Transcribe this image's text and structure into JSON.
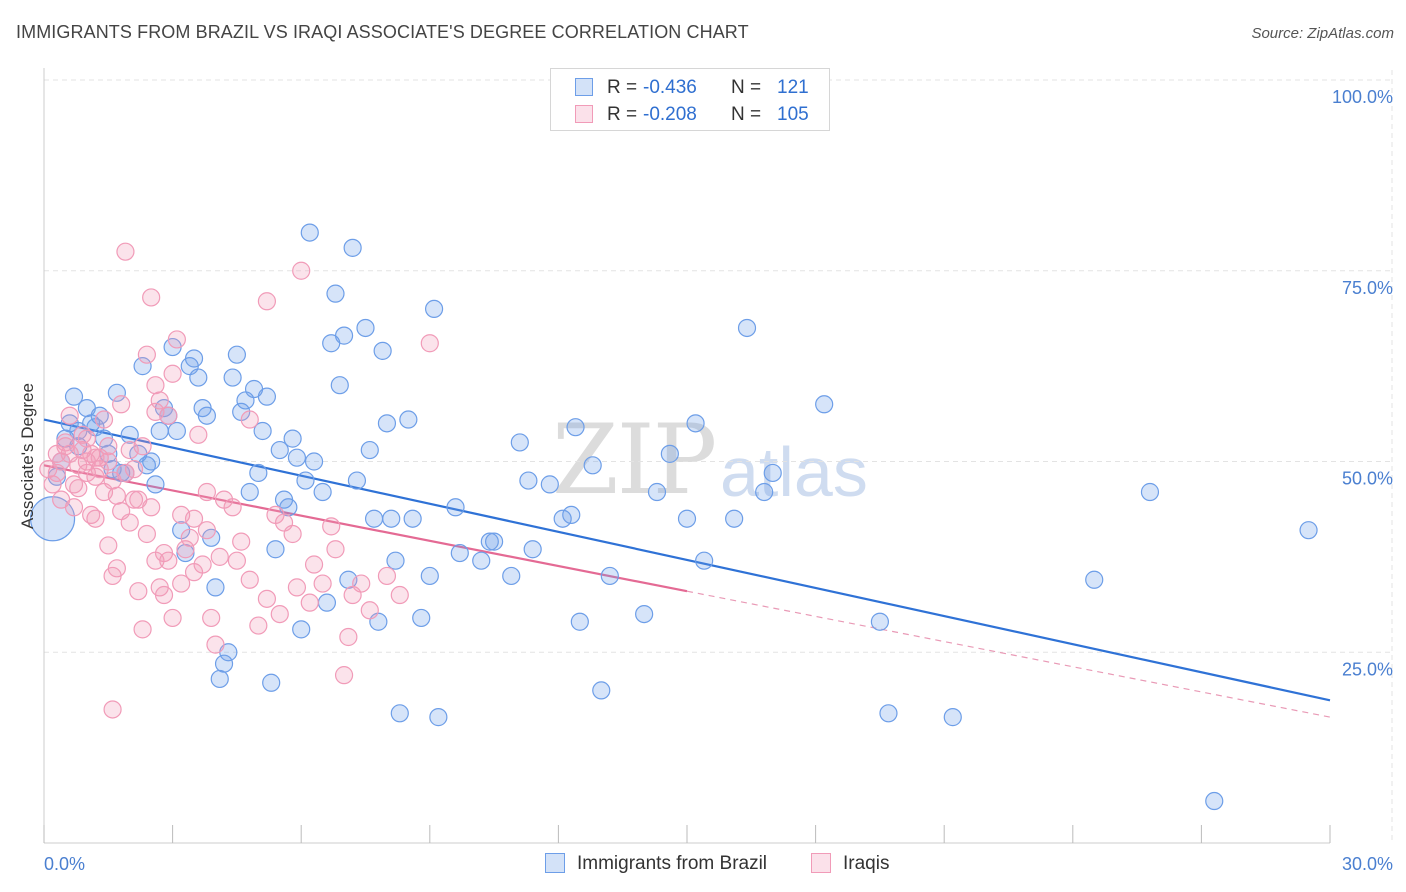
{
  "header": {
    "title": "IMMIGRANTS FROM BRAZIL VS IRAQI ASSOCIATE'S DEGREE CORRELATION CHART",
    "source": "Source: ZipAtlas.com"
  },
  "watermark": {
    "zip": "ZIP",
    "atlas": "atlas"
  },
  "legend": {
    "rows": [
      {
        "r_label": "R =",
        "r_value": "-0.436",
        "n_label": "N =",
        "n_value": "121",
        "color": "#6d9ee8"
      },
      {
        "r_label": "R =",
        "r_value": "-0.208",
        "n_label": "N =",
        "n_value": "105",
        "color": "#f19bb8"
      }
    ]
  },
  "bottom_legend": {
    "items": [
      {
        "label": "Immigrants from Brazil",
        "color": "#6d9ee8"
      },
      {
        "label": "Iraqis",
        "color": "#f19bb8"
      }
    ]
  },
  "axes": {
    "ylabel": "Associate's Degree",
    "y_ticks": [
      "100.0%",
      "75.0%",
      "50.0%",
      "25.0%"
    ],
    "x_ticks": [
      "0.0%",
      "30.0%"
    ]
  },
  "chart_data": {
    "type": "scatter",
    "title": "IMMIGRANTS FROM BRAZIL VS IRAQI ASSOCIATE'S DEGREE CORRELATION CHART",
    "xlabel": "",
    "ylabel": "Associate's Degree",
    "xlim": [
      0,
      30
    ],
    "ylim": [
      0,
      100
    ],
    "x_unit": "%",
    "y_unit": "%",
    "grid": true,
    "legend_placement": "top-center",
    "series": [
      {
        "name": "Immigrants from Brazil",
        "color": "#6d9ee8",
        "trend": {
          "x": [
            0,
            30
          ],
          "y": [
            55.5,
            18.7
          ],
          "style": "solid"
        },
        "points": [
          [
            0.2,
            42.5
          ],
          [
            0.3,
            48
          ],
          [
            0.4,
            50
          ],
          [
            0.5,
            53
          ],
          [
            0.6,
            55
          ],
          [
            0.7,
            58.5
          ],
          [
            0.8,
            54
          ],
          [
            0.8,
            52
          ],
          [
            1.0,
            57
          ],
          [
            1.1,
            55
          ],
          [
            1.2,
            54.5
          ],
          [
            1.3,
            56
          ],
          [
            1.4,
            53
          ],
          [
            1.5,
            51
          ],
          [
            1.6,
            49
          ],
          [
            1.7,
            59
          ],
          [
            1.8,
            48.5
          ],
          [
            1.9,
            48.5
          ],
          [
            2.0,
            53.5
          ],
          [
            2.2,
            51
          ],
          [
            2.3,
            62.5
          ],
          [
            2.4,
            49.5
          ],
          [
            2.5,
            50
          ],
          [
            2.6,
            47
          ],
          [
            2.7,
            54
          ],
          [
            2.8,
            57
          ],
          [
            2.9,
            56
          ],
          [
            3.0,
            65
          ],
          [
            3.1,
            54
          ],
          [
            3.2,
            41
          ],
          [
            3.3,
            38
          ],
          [
            3.4,
            62.5
          ],
          [
            3.5,
            63.5
          ],
          [
            3.6,
            61
          ],
          [
            3.7,
            57
          ],
          [
            3.8,
            56
          ],
          [
            3.9,
            40
          ],
          [
            4.0,
            33.5
          ],
          [
            4.1,
            21.5
          ],
          [
            4.2,
            23.5
          ],
          [
            4.3,
            25
          ],
          [
            4.4,
            61
          ],
          [
            4.5,
            64
          ],
          [
            4.6,
            56.5
          ],
          [
            4.7,
            58
          ],
          [
            4.8,
            46
          ],
          [
            4.9,
            59.5
          ],
          [
            5.0,
            48.5
          ],
          [
            5.1,
            54
          ],
          [
            5.2,
            58.5
          ],
          [
            5.3,
            21
          ],
          [
            5.4,
            38.5
          ],
          [
            5.5,
            51.5
          ],
          [
            5.6,
            45
          ],
          [
            5.7,
            44
          ],
          [
            5.8,
            53
          ],
          [
            5.9,
            50.5
          ],
          [
            6.0,
            28
          ],
          [
            6.1,
            47.5
          ],
          [
            6.2,
            80
          ],
          [
            6.3,
            50
          ],
          [
            6.5,
            46
          ],
          [
            6.6,
            31.5
          ],
          [
            6.7,
            65.5
          ],
          [
            6.8,
            72
          ],
          [
            6.9,
            60
          ],
          [
            7.0,
            66.5
          ],
          [
            7.1,
            34.5
          ],
          [
            7.2,
            78
          ],
          [
            7.3,
            47.5
          ],
          [
            7.5,
            67.5
          ],
          [
            7.6,
            51.5
          ],
          [
            7.7,
            42.5
          ],
          [
            7.8,
            29
          ],
          [
            7.9,
            64.5
          ],
          [
            8.0,
            55
          ],
          [
            8.1,
            42.5
          ],
          [
            8.2,
            37
          ],
          [
            8.3,
            17
          ],
          [
            8.5,
            55.5
          ],
          [
            8.6,
            42.5
          ],
          [
            8.8,
            29.5
          ],
          [
            9.0,
            35
          ],
          [
            9.1,
            70
          ],
          [
            9.2,
            16.5
          ],
          [
            9.6,
            44
          ],
          [
            9.7,
            38
          ],
          [
            10.2,
            37
          ],
          [
            10.4,
            39.5
          ],
          [
            10.5,
            39.5
          ],
          [
            10.9,
            35
          ],
          [
            11.1,
            52.5
          ],
          [
            11.3,
            47.5
          ],
          [
            11.4,
            38.5
          ],
          [
            11.8,
            47
          ],
          [
            12.1,
            42.5
          ],
          [
            12.3,
            43
          ],
          [
            12.4,
            54.5
          ],
          [
            12.5,
            29
          ],
          [
            12.8,
            49.5
          ],
          [
            13.0,
            20
          ],
          [
            13.2,
            35
          ],
          [
            14.0,
            30
          ],
          [
            14.3,
            46
          ],
          [
            14.6,
            51
          ],
          [
            15.0,
            42.5
          ],
          [
            15.2,
            55
          ],
          [
            15.4,
            37
          ],
          [
            16.1,
            42.5
          ],
          [
            16.4,
            67.5
          ],
          [
            16.8,
            46
          ],
          [
            17.0,
            48.5
          ],
          [
            18.2,
            57.5
          ],
          [
            19.5,
            29
          ],
          [
            19.7,
            17
          ],
          [
            21.2,
            16.5
          ],
          [
            24.5,
            34.5
          ],
          [
            25.8,
            46
          ],
          [
            27.3,
            5.5
          ],
          [
            29.5,
            41
          ]
        ]
      },
      {
        "name": "Iraqis",
        "color": "#f19bb8",
        "trend": {
          "x": [
            0,
            15
          ],
          "y": [
            49.5,
            33
          ],
          "style": "solid",
          "extended_to": [
            30,
            16.5
          ]
        },
        "points": [
          [
            0.1,
            49
          ],
          [
            0.2,
            47
          ],
          [
            0.3,
            51
          ],
          [
            0.4,
            50
          ],
          [
            0.5,
            52
          ],
          [
            0.6,
            56
          ],
          [
            0.7,
            44
          ],
          [
            0.8,
            46.5
          ],
          [
            0.9,
            51.5
          ],
          [
            1.0,
            50
          ],
          [
            1.1,
            43
          ],
          [
            1.2,
            42.5
          ],
          [
            1.3,
            50.5
          ],
          [
            1.4,
            55.5
          ],
          [
            1.5,
            39
          ],
          [
            1.6,
            35
          ],
          [
            1.7,
            36
          ],
          [
            1.8,
            57.5
          ],
          [
            1.9,
            77.5
          ],
          [
            2.0,
            51.5
          ],
          [
            2.1,
            45
          ],
          [
            2.2,
            33
          ],
          [
            2.3,
            28
          ],
          [
            2.4,
            64
          ],
          [
            2.5,
            71.5
          ],
          [
            2.6,
            60
          ],
          [
            2.7,
            33.5
          ],
          [
            2.8,
            38
          ],
          [
            2.9,
            37
          ],
          [
            3.0,
            61.5
          ],
          [
            3.1,
            66
          ],
          [
            3.2,
            34
          ],
          [
            3.3,
            38.5
          ],
          [
            3.4,
            40
          ],
          [
            3.5,
            35.5
          ],
          [
            3.6,
            53.5
          ],
          [
            3.7,
            36.5
          ],
          [
            3.8,
            46
          ],
          [
            3.9,
            29.5
          ],
          [
            4.0,
            26
          ],
          [
            4.2,
            45
          ],
          [
            4.4,
            44
          ],
          [
            4.6,
            39.5
          ],
          [
            4.8,
            55.5
          ],
          [
            5.0,
            28.5
          ],
          [
            5.2,
            71
          ],
          [
            5.4,
            43
          ],
          [
            5.6,
            42
          ],
          [
            5.8,
            40.5
          ],
          [
            6.0,
            75
          ],
          [
            6.2,
            31.5
          ],
          [
            6.5,
            34
          ],
          [
            6.8,
            38.5
          ],
          [
            7.0,
            22
          ],
          [
            7.2,
            32.5
          ],
          [
            7.4,
            34
          ],
          [
            7.6,
            30.5
          ],
          [
            8.0,
            35
          ],
          [
            8.3,
            32.5
          ],
          [
            9.0,
            65.5
          ],
          [
            0.5,
            52.5
          ],
          [
            0.8,
            49.5
          ],
          [
            1.0,
            53
          ],
          [
            1.2,
            48
          ],
          [
            1.4,
            46
          ],
          [
            1.6,
            47.5
          ],
          [
            1.8,
            43.5
          ],
          [
            2.0,
            42
          ],
          [
            2.2,
            45
          ],
          [
            2.4,
            40.5
          ],
          [
            2.6,
            37
          ],
          [
            2.8,
            32.5
          ],
          [
            3.0,
            29.5
          ],
          [
            0.3,
            48.5
          ],
          [
            0.6,
            51
          ],
          [
            0.9,
            53.5
          ],
          [
            1.1,
            51
          ],
          [
            1.3,
            49
          ],
          [
            1.5,
            50
          ],
          [
            1.7,
            45.5
          ],
          [
            1.9,
            48.5
          ],
          [
            2.1,
            49
          ],
          [
            2.3,
            52
          ],
          [
            2.5,
            44
          ],
          [
            2.7,
            58
          ],
          [
            2.9,
            56
          ],
          [
            3.2,
            43
          ],
          [
            3.5,
            42.5
          ],
          [
            3.8,
            41
          ],
          [
            4.1,
            37.5
          ],
          [
            4.5,
            37
          ],
          [
            4.8,
            34.5
          ],
          [
            5.2,
            32
          ],
          [
            5.5,
            30
          ],
          [
            5.9,
            33.5
          ],
          [
            6.3,
            36.5
          ],
          [
            6.7,
            41.5
          ],
          [
            7.1,
            27
          ],
          [
            1.6,
            17.5
          ],
          [
            2.6,
            56.5
          ],
          [
            0.4,
            45
          ],
          [
            0.7,
            47
          ],
          [
            1.0,
            48.5
          ],
          [
            1.2,
            50.5
          ],
          [
            1.5,
            52
          ]
        ]
      }
    ]
  }
}
